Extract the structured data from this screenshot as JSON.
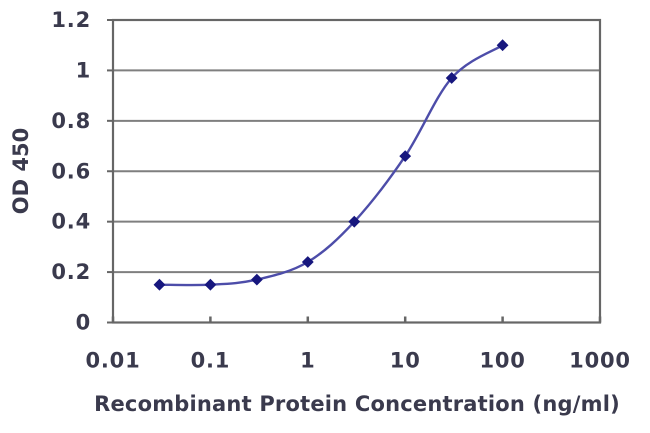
{
  "page": {
    "background": "#ffffff"
  },
  "chart_data": {
    "type": "line",
    "title": "",
    "xlabel": "Recombinant Protein Concentration (ng/ml)",
    "ylabel": "OD 450",
    "x_scale": "log",
    "xlim": [
      0.01,
      1000
    ],
    "ylim": [
      0,
      1.2
    ],
    "grid": "horizontal-only",
    "legend_position": "none",
    "x_ticks": [
      {
        "value": 0.01,
        "label": "0.01"
      },
      {
        "value": 0.1,
        "label": "0.1"
      },
      {
        "value": 1,
        "label": "1"
      },
      {
        "value": 10,
        "label": "10"
      },
      {
        "value": 100,
        "label": "100"
      },
      {
        "value": 1000,
        "label": "1000"
      }
    ],
    "y_ticks": [
      {
        "value": 0,
        "label": "0"
      },
      {
        "value": 0.2,
        "label": "0.2"
      },
      {
        "value": 0.4,
        "label": "0.4"
      },
      {
        "value": 0.6,
        "label": "0.6"
      },
      {
        "value": 0.8,
        "label": "0.8"
      },
      {
        "value": 1,
        "label": "1"
      },
      {
        "value": 1.2,
        "label": "1.2"
      }
    ],
    "series": [
      {
        "name": "OD 450",
        "marker": "diamond",
        "points": [
          {
            "x": 0.03,
            "y": 0.15
          },
          {
            "x": 0.1,
            "y": 0.15
          },
          {
            "x": 0.3,
            "y": 0.17
          },
          {
            "x": 1,
            "y": 0.24
          },
          {
            "x": 3,
            "y": 0.4
          },
          {
            "x": 10,
            "y": 0.66
          },
          {
            "x": 30,
            "y": 0.97
          },
          {
            "x": 100,
            "y": 1.1
          }
        ]
      }
    ],
    "colors": {
      "line": "#4d4da9",
      "marker": "#17177e",
      "grid": "#7f7f7f",
      "axis": "#666666",
      "text": "#3a3a4d"
    }
  }
}
